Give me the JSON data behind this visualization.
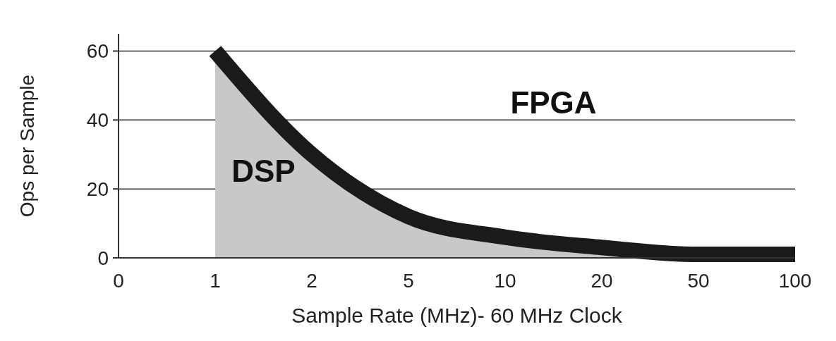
{
  "chart_data": {
    "type": "area",
    "xlabel": "Sample Rate (MHz)- 60 MHz Clock",
    "ylabel": "Ops per Sample",
    "categories": [
      "0",
      "1",
      "2",
      "5",
      "10",
      "20",
      "50",
      "100"
    ],
    "series": [
      {
        "color": "#1a1a1a",
        "values": [
          null,
          60,
          30,
          12,
          6,
          3,
          1,
          1
        ]
      }
    ],
    "ylim": [
      0,
      65
    ],
    "yticks": [
      0,
      20,
      40,
      60
    ],
    "grid": "y",
    "annotations": [
      "DSP",
      "FPGA"
    ]
  }
}
